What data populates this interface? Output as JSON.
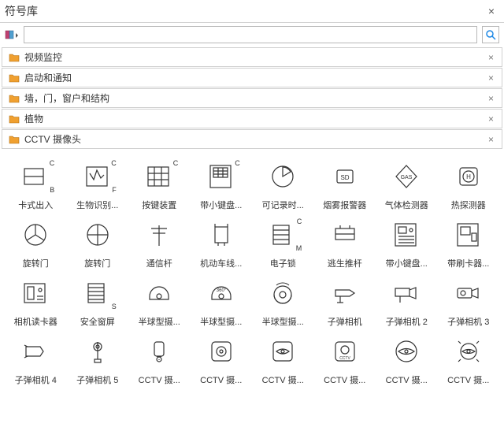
{
  "title": "符号库",
  "search": {
    "placeholder": ""
  },
  "categories": [
    {
      "label": "视频监控"
    },
    {
      "label": "启动和通知"
    },
    {
      "label": "墙，门，窗户和结构"
    },
    {
      "label": "植物"
    },
    {
      "label": "CCTV 摄像头"
    }
  ],
  "icons": [
    {
      "label": "卡式出入",
      "glyph": "card-access",
      "corners": {
        "tr": "C",
        "br": "B"
      }
    },
    {
      "label": "生物识别...",
      "glyph": "biometric",
      "corners": {
        "tr": "C",
        "br": "F"
      }
    },
    {
      "label": "按键装置",
      "glyph": "keypad",
      "corners": {
        "tr": "C"
      }
    },
    {
      "label": "带小键盘...",
      "glyph": "keypad-panel",
      "corners": {
        "tr": "C"
      }
    },
    {
      "label": "可记录时...",
      "glyph": "recorder",
      "corners": {}
    },
    {
      "label": "烟雾报警器",
      "glyph": "smoke",
      "corners": {}
    },
    {
      "label": "气体检测器",
      "glyph": "gas",
      "corners": {}
    },
    {
      "label": "热探测器",
      "glyph": "heat",
      "corners": {}
    },
    {
      "label": "旋转门",
      "glyph": "revolve1",
      "corners": {}
    },
    {
      "label": "旋转门",
      "glyph": "revolve2",
      "corners": {}
    },
    {
      "label": "通信杆",
      "glyph": "comm-pole",
      "corners": {}
    },
    {
      "label": "机动车线...",
      "glyph": "vehicle-line",
      "corners": {}
    },
    {
      "label": "电子锁",
      "glyph": "elock",
      "corners": {
        "tr": "C",
        "br": "M"
      }
    },
    {
      "label": "逃生推杆",
      "glyph": "escape-bar",
      "corners": {}
    },
    {
      "label": "带小键盘...",
      "glyph": "keypad2",
      "corners": {}
    },
    {
      "label": "带刷卡器...",
      "glyph": "card-reader",
      "corners": {}
    },
    {
      "label": "相机读卡器",
      "glyph": "cam-reader",
      "corners": {}
    },
    {
      "label": "安全窗屏",
      "glyph": "sec-screen",
      "corners": {
        "br": "S"
      }
    },
    {
      "label": "半球型摄...",
      "glyph": "dome1",
      "corners": {}
    },
    {
      "label": "半球型摄...",
      "glyph": "dome2",
      "corners": {}
    },
    {
      "label": "半球型摄...",
      "glyph": "dome3",
      "corners": {}
    },
    {
      "label": "子弹相机",
      "glyph": "bullet1",
      "corners": {}
    },
    {
      "label": "子弹相机 2",
      "glyph": "bullet2",
      "corners": {}
    },
    {
      "label": "子弹相机 3",
      "glyph": "bullet3",
      "corners": {}
    },
    {
      "label": "子弹相机 4",
      "glyph": "bullet4",
      "corners": {}
    },
    {
      "label": "子弹相机 5",
      "glyph": "bullet5",
      "corners": {}
    },
    {
      "label": "CCTV 摄...",
      "glyph": "cctv1",
      "corners": {}
    },
    {
      "label": "CCTV 摄...",
      "glyph": "cctv2",
      "corners": {}
    },
    {
      "label": "CCTV 摄...",
      "glyph": "cctv3",
      "corners": {}
    },
    {
      "label": "CCTV 摄...",
      "glyph": "cctv4",
      "corners": {}
    },
    {
      "label": "CCTV 摄...",
      "glyph": "cctv5",
      "corners": {}
    },
    {
      "label": "CCTV 摄...",
      "glyph": "cctv6",
      "corners": {}
    }
  ],
  "colors": {
    "stroke": "#333333",
    "folder": "#f0a030",
    "searchIcon": "#1e88e5",
    "libAccent": "#c04070"
  }
}
